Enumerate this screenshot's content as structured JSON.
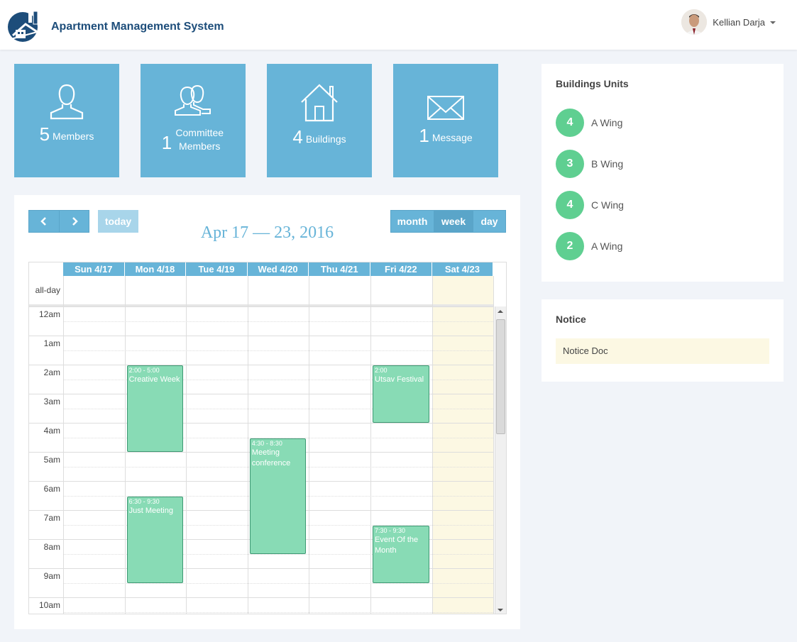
{
  "header": {
    "title": "Apartment Management System",
    "user_name": "Kellian Darja"
  },
  "stats": [
    {
      "num": "5",
      "label": "Members",
      "icon": "user-icon"
    },
    {
      "num": "1",
      "label": "Committee Members",
      "icon": "users-icon"
    },
    {
      "num": "4",
      "label": "Buildings",
      "icon": "home-icon"
    },
    {
      "num": "1",
      "label": "Message",
      "icon": "envelope-icon"
    }
  ],
  "calendar": {
    "prev_icon": "chevron-left-icon",
    "next_icon": "chevron-right-icon",
    "today_label": "today",
    "views": [
      "month",
      "week",
      "day"
    ],
    "active_view": "week",
    "title": "Apr 17 — 23, 2016",
    "days": [
      "Sun 4/17",
      "Mon 4/18",
      "Tue 4/19",
      "Wed 4/20",
      "Thu 4/21",
      "Fri 4/22",
      "Sat 4/23"
    ],
    "allday_label": "all-day",
    "hours": [
      "12am",
      "1am",
      "2am",
      "3am",
      "4am",
      "5am",
      "6am",
      "7am",
      "8am",
      "9am",
      "10am"
    ],
    "events": [
      {
        "day": 1,
        "start": 2,
        "end": 5,
        "time": "2:00 - 5:00",
        "title": "Creative Week"
      },
      {
        "day": 1,
        "start": 6.5,
        "end": 9.5,
        "time": "6:30 - 9:30",
        "title": "Just Meeting"
      },
      {
        "day": 3,
        "start": 4.5,
        "end": 8.5,
        "time": "4:30 - 8:30",
        "title": "Meeting conference"
      },
      {
        "day": 5,
        "start": 2,
        "end": 4,
        "time": "2:00",
        "title": "Utsav Festival"
      },
      {
        "day": 5,
        "start": 7.5,
        "end": 9.5,
        "time": "7:30 - 9:30",
        "title": "Event Of the Month"
      }
    ],
    "event_color": "#88dbb5",
    "today_highlight": "#fcf8e3"
  },
  "buildings": {
    "title": "Buildings Units",
    "items": [
      {
        "count": "4",
        "name": "A Wing"
      },
      {
        "count": "3",
        "name": "B Wing"
      },
      {
        "count": "4",
        "name": "C Wing"
      },
      {
        "count": "2",
        "name": "A Wing"
      }
    ]
  },
  "notice": {
    "title": "Notice",
    "items": [
      "Notice Doc"
    ]
  },
  "colors": {
    "accent": "#67b4d8",
    "unit_badge": "#5fcf91",
    "brand_text": "#1d4d7a"
  }
}
